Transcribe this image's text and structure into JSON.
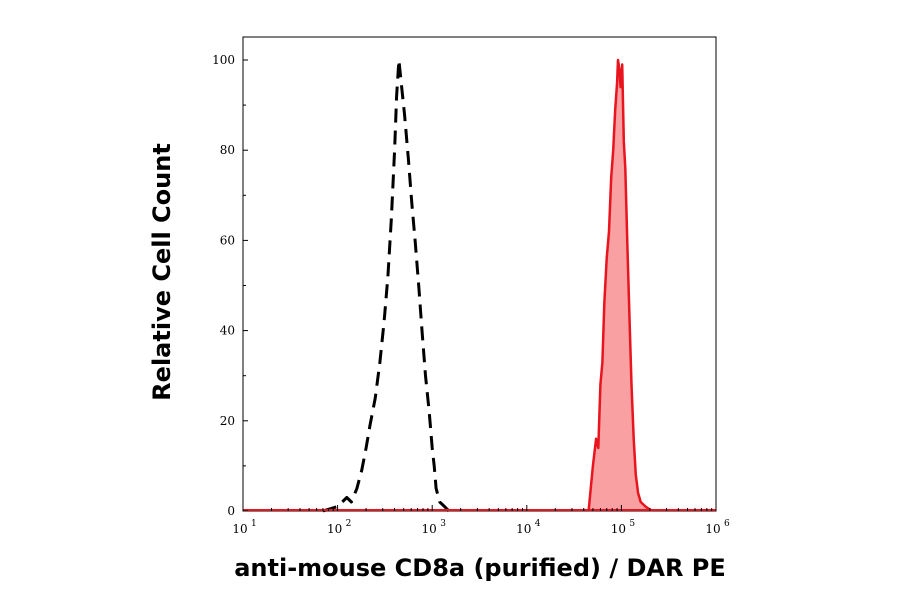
{
  "chart_data": {
    "type": "area",
    "title": "",
    "xlabel": "anti-mouse CD8a (purified) / DAR PE",
    "ylabel": "Relative Cell Count",
    "x_scale": "log10",
    "xlim": [
      10,
      1000000
    ],
    "ylim": [
      0,
      105
    ],
    "x_ticks": [
      {
        "value": 10,
        "base": "10",
        "exp": "1"
      },
      {
        "value": 100,
        "base": "10",
        "exp": "2"
      },
      {
        "value": 1000,
        "base": "10",
        "exp": "3"
      },
      {
        "value": 10000,
        "base": "10",
        "exp": "4"
      },
      {
        "value": 100000,
        "base": "10",
        "exp": "5"
      },
      {
        "value": 1000000,
        "base": "10",
        "exp": "6"
      }
    ],
    "y_ticks": [
      {
        "value": 0,
        "label": "0"
      },
      {
        "value": 20,
        "label": "20"
      },
      {
        "value": 40,
        "label": "40"
      },
      {
        "value": 60,
        "label": "60"
      },
      {
        "value": 80,
        "label": "80"
      },
      {
        "value": 100,
        "label": "100"
      }
    ],
    "grid": false,
    "legend": "none",
    "series": [
      {
        "style": "dashed",
        "color": "#000000",
        "fill": null,
        "points": [
          [
            70,
            0
          ],
          [
            100,
            1
          ],
          [
            125,
            3
          ],
          [
            140,
            2
          ],
          [
            160,
            5
          ],
          [
            180,
            9
          ],
          [
            200,
            14
          ],
          [
            220,
            19
          ],
          [
            250,
            25
          ],
          [
            280,
            33
          ],
          [
            310,
            42
          ],
          [
            340,
            52
          ],
          [
            370,
            65
          ],
          [
            400,
            80
          ],
          [
            420,
            92
          ],
          [
            445,
            100
          ],
          [
            470,
            95
          ],
          [
            510,
            88
          ],
          [
            560,
            78
          ],
          [
            610,
            68
          ],
          [
            660,
            60
          ],
          [
            720,
            50
          ],
          [
            780,
            40
          ],
          [
            850,
            30
          ],
          [
            930,
            22
          ],
          [
            1000,
            14
          ],
          [
            1050,
            10
          ],
          [
            1100,
            5
          ],
          [
            1200,
            2
          ],
          [
            1350,
            1
          ],
          [
            1500,
            0
          ]
        ]
      },
      {
        "style": "solid",
        "color": "#e8141e",
        "fill": "#f8a0a2",
        "points": [
          [
            45000,
            0
          ],
          [
            50000,
            10
          ],
          [
            54000,
            16
          ],
          [
            57000,
            14
          ],
          [
            60000,
            28
          ],
          [
            63000,
            33
          ],
          [
            66000,
            46
          ],
          [
            70000,
            56
          ],
          [
            74000,
            62
          ],
          [
            78000,
            74
          ],
          [
            82000,
            80
          ],
          [
            86000,
            89
          ],
          [
            90000,
            95
          ],
          [
            92000,
            100
          ],
          [
            95000,
            98
          ],
          [
            98000,
            94
          ],
          [
            102000,
            99
          ],
          [
            106000,
            82
          ],
          [
            110000,
            76
          ],
          [
            116000,
            58
          ],
          [
            122000,
            42
          ],
          [
            128000,
            28
          ],
          [
            135000,
            16
          ],
          [
            142000,
            8
          ],
          [
            150000,
            4
          ],
          [
            160000,
            2
          ],
          [
            180000,
            1
          ],
          [
            210000,
            0
          ]
        ]
      }
    ]
  }
}
